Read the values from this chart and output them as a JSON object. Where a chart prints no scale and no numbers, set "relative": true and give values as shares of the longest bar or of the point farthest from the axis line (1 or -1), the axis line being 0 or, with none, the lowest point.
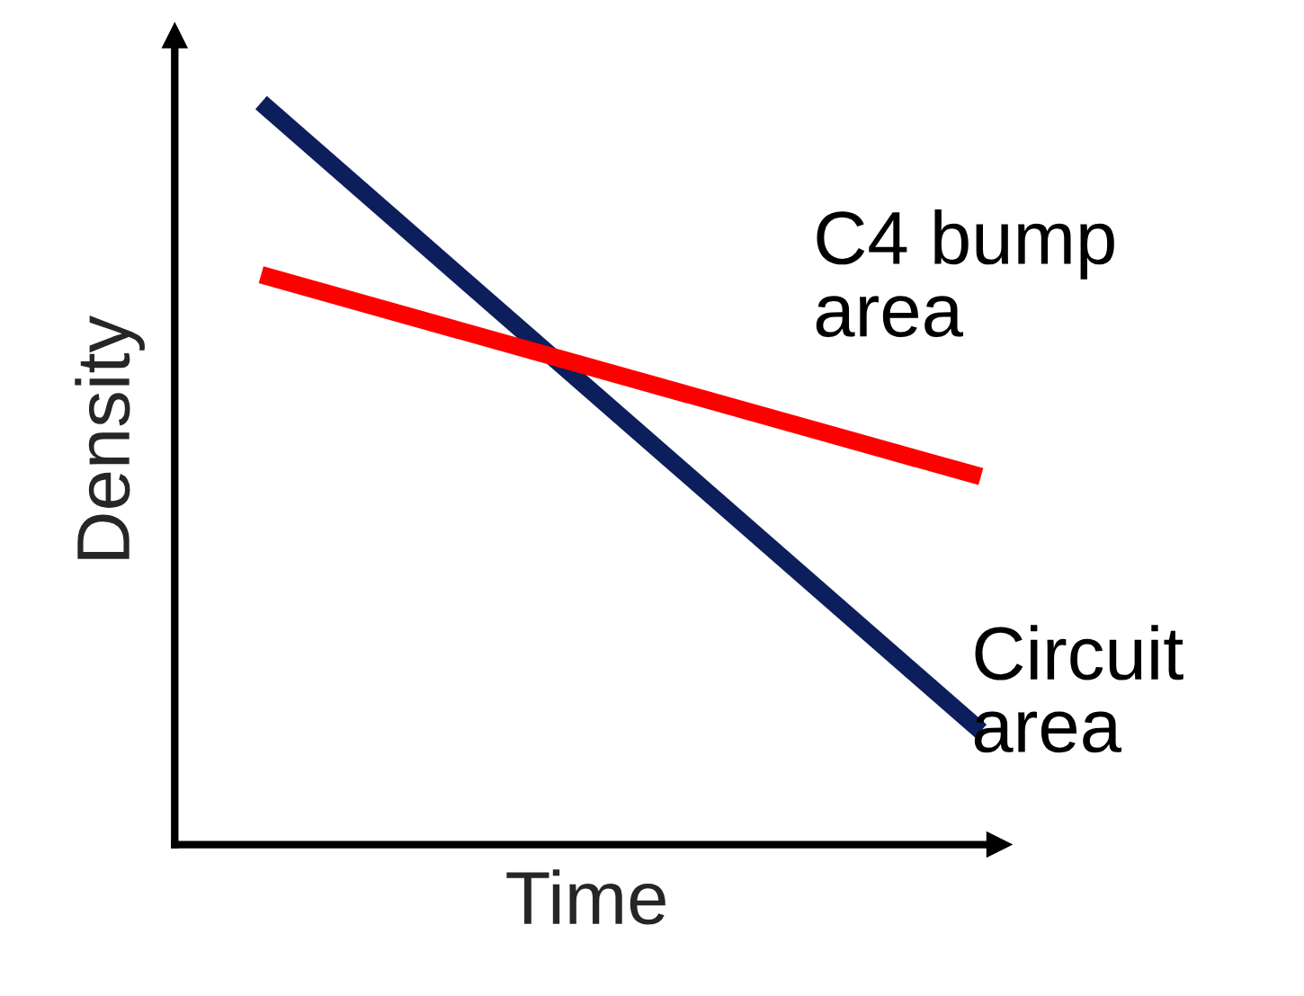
{
  "chart_data": {
    "type": "line",
    "relative": true,
    "xlabel": "Time",
    "ylabel": "Density",
    "categories": [
      null,
      null
    ],
    "series": [
      {
        "name": "Circuit\narea",
        "color": "#0c1e5b",
        "values": [
          1,
          0.153
        ]
      },
      {
        "name": "C4 bump\narea",
        "color": "#ff0000",
        "values": [
          0.768,
          0.496
        ]
      }
    ]
  }
}
